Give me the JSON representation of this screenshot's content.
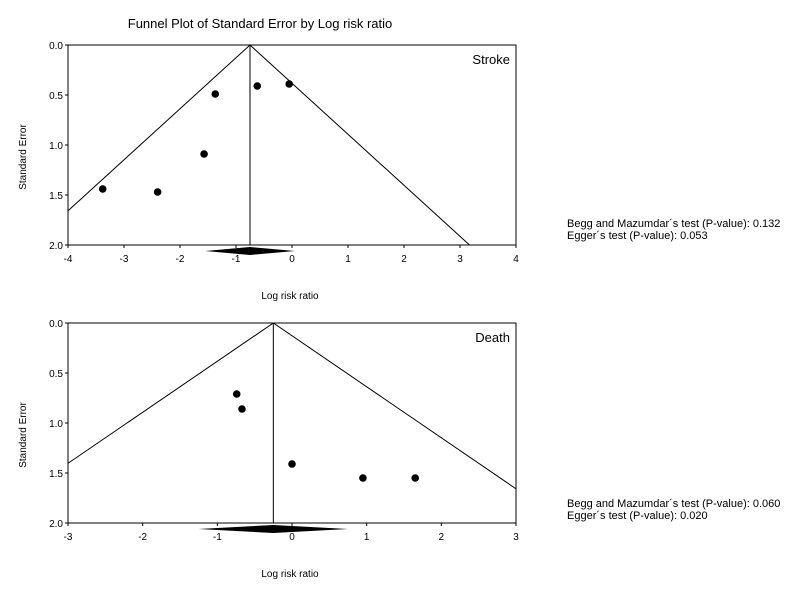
{
  "title": "Funnel Plot of Standard Error by Log risk ratio",
  "chart_data": [
    {
      "type": "scatter",
      "panel_label": "Stroke",
      "xlabel": "Log risk ratio",
      "ylabel": "Standard Error",
      "xlim": [
        -4,
        4
      ],
      "ylim": [
        0,
        2
      ],
      "y_inverted": true,
      "x_ticks": [
        "-4",
        "-3",
        "-2",
        "-1",
        "0",
        "1",
        "2",
        "3",
        "4"
      ],
      "y_ticks": [
        "0.0",
        "0.5",
        "1.0",
        "1.5",
        "2.0"
      ],
      "pooled_estimate": -0.75,
      "diamond_ci": [
        -1.55,
        0.05
      ],
      "points": [
        {
          "x": -3.38,
          "y": 1.44
        },
        {
          "x": -2.4,
          "y": 1.47
        },
        {
          "x": -1.57,
          "y": 1.09
        },
        {
          "x": -1.37,
          "y": 0.49
        },
        {
          "x": -0.62,
          "y": 0.41
        },
        {
          "x": -0.05,
          "y": 0.39
        }
      ],
      "stats": {
        "begg": "Begg and Mazumdar´s test (P-value): 0.132",
        "egger": "Egger´s test (P-value):  0.053"
      }
    },
    {
      "type": "scatter",
      "panel_label": "Death",
      "xlabel": "Log risk ratio",
      "ylabel": "Standard Error",
      "xlim": [
        -3,
        3
      ],
      "ylim": [
        0,
        2
      ],
      "y_inverted": true,
      "x_ticks": [
        "-3",
        "-2",
        "-1",
        "0",
        "1",
        "2",
        "3"
      ],
      "y_ticks": [
        "0.0",
        "0.5",
        "1.0",
        "1.5",
        "2.0"
      ],
      "pooled_estimate": -0.25,
      "diamond_ci": [
        -1.25,
        0.75
      ],
      "points": [
        {
          "x": -0.74,
          "y": 0.71
        },
        {
          "x": -0.67,
          "y": 0.86
        },
        {
          "x": 0.0,
          "y": 1.41
        },
        {
          "x": 0.95,
          "y": 1.55
        },
        {
          "x": 1.65,
          "y": 1.55
        }
      ],
      "stats": {
        "begg": "Begg and Mazumdar´s test (P-value): 0.060",
        "egger": "Egger´s test (P-value):  0.020"
      }
    }
  ]
}
